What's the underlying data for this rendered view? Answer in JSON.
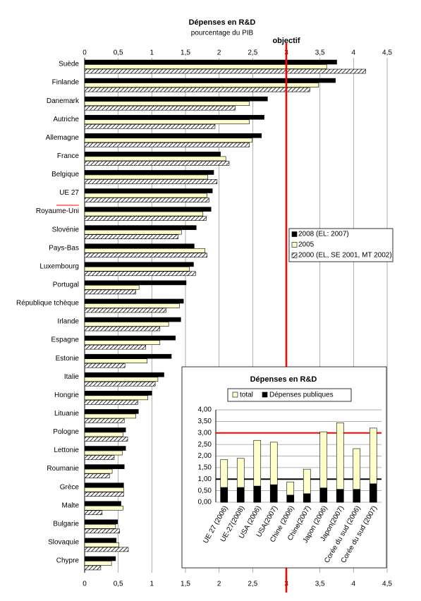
{
  "chart_data": [
    {
      "type": "hbar",
      "title": "Dépenses en R&D",
      "subtitle": "pourcentage du PIB",
      "categories": [
        "Suède",
        "Finlande",
        "Danemark",
        "Autriche",
        "Allemagne",
        "France",
        "Belgique",
        "UE 27",
        "Royaume-Uni",
        "Slovénie",
        "Pays-Bas",
        "Luxembourg",
        "Portugal",
        "République tchèque",
        "Irlande",
        "Espagne",
        "Estonie",
        "Italie",
        "Hongrie",
        "Lituanie",
        "Pologne",
        "Lettonie",
        "Roumanie",
        "Grèce",
        "Malte",
        "Bulgarie",
        "Slovaquie",
        "Chypre"
      ],
      "series": [
        {
          "name": "2008 (EL: 2007)",
          "color": "#000000",
          "values": [
            3.75,
            3.73,
            2.72,
            2.67,
            2.63,
            2.02,
            1.92,
            1.9,
            1.88,
            1.66,
            1.63,
            1.62,
            1.51,
            1.47,
            1.43,
            1.35,
            1.29,
            1.18,
            1.0,
            0.8,
            0.61,
            0.61,
            0.59,
            0.58,
            0.54,
            0.49,
            0.47,
            0.46
          ]
        },
        {
          "name": "2005",
          "color": "#ffffcc",
          "values": [
            3.6,
            3.48,
            2.45,
            2.45,
            2.49,
            2.1,
            1.83,
            1.82,
            1.76,
            1.44,
            1.79,
            1.56,
            0.81,
            1.41,
            1.25,
            1.12,
            0.93,
            1.09,
            0.94,
            0.76,
            0.57,
            0.56,
            0.41,
            0.58,
            0.57,
            0.46,
            0.51,
            0.4
          ]
        },
        {
          "name": "2000 (EL, SE 2001, MT 2002)",
          "color": "#000000",
          "pattern": "diagonal-hatch",
          "values": [
            4.18,
            3.35,
            2.24,
            1.94,
            2.45,
            2.15,
            1.97,
            1.85,
            1.81,
            1.39,
            1.82,
            1.65,
            0.76,
            1.21,
            1.12,
            0.91,
            0.6,
            1.05,
            0.79,
            0.59,
            0.64,
            0.44,
            0.37,
            0.58,
            0.26,
            0.52,
            0.65,
            0.24
          ]
        }
      ],
      "xlim": [
        0,
        4.5
      ],
      "xticks": [
        0,
        {
          "value": 0.5,
          "label": "0,5"
        },
        1,
        {
          "value": 1.5,
          "label": "1,5"
        },
        2,
        {
          "value": 2.5,
          "label": "2,5"
        },
        3,
        {
          "value": 3.5,
          "label": "3,5"
        },
        4,
        {
          "value": 4.5,
          "label": "4,5"
        }
      ],
      "target": {
        "value": 3,
        "label": "objectif",
        "color": "#ff0000"
      },
      "grid": true,
      "legend": "right"
    },
    {
      "type": "bar",
      "title": "Dépenses en R&D",
      "categories": [
        "UE 27 (2006)",
        "UE-27(2008)",
        "USA (2006)",
        "USA(2007)",
        "Chine (2006)",
        "Chine(2007)",
        "Japon (2006)",
        "Japon(2007)",
        "Corée du sud (2006)",
        "Corée du sud (2007)"
      ],
      "series": [
        {
          "name": "total",
          "color": "#ffffcc",
          "values": [
            1.84,
            1.9,
            2.68,
            2.6,
            0.88,
            1.43,
            3.05,
            3.44,
            2.32,
            3.21
          ]
        },
        {
          "name": "Dépenses publiques",
          "color": "#000000",
          "values": [
            0.64,
            0.64,
            0.7,
            0.76,
            0.31,
            0.37,
            0.62,
            0.56,
            0.56,
            0.8
          ]
        }
      ],
      "ylim": [
        0,
        4
      ],
      "yticks": [
        {
          "value": 0,
          "label": "0,00"
        },
        {
          "value": 0.5,
          "label": "0,50"
        },
        {
          "value": 1,
          "label": "1,00"
        },
        {
          "value": 1.5,
          "label": "1,50"
        },
        {
          "value": 2,
          "label": "2,00"
        },
        {
          "value": 2.5,
          "label": "2,50"
        },
        {
          "value": 3,
          "label": "3,00"
        },
        {
          "value": 3.5,
          "label": "3,50"
        },
        {
          "value": 4,
          "label": "4,00"
        }
      ],
      "reference_lines": [
        {
          "value": 3,
          "color": "#ff0000"
        },
        {
          "value": 1,
          "color": "#000000"
        }
      ],
      "grid": true,
      "legend": "top"
    }
  ]
}
